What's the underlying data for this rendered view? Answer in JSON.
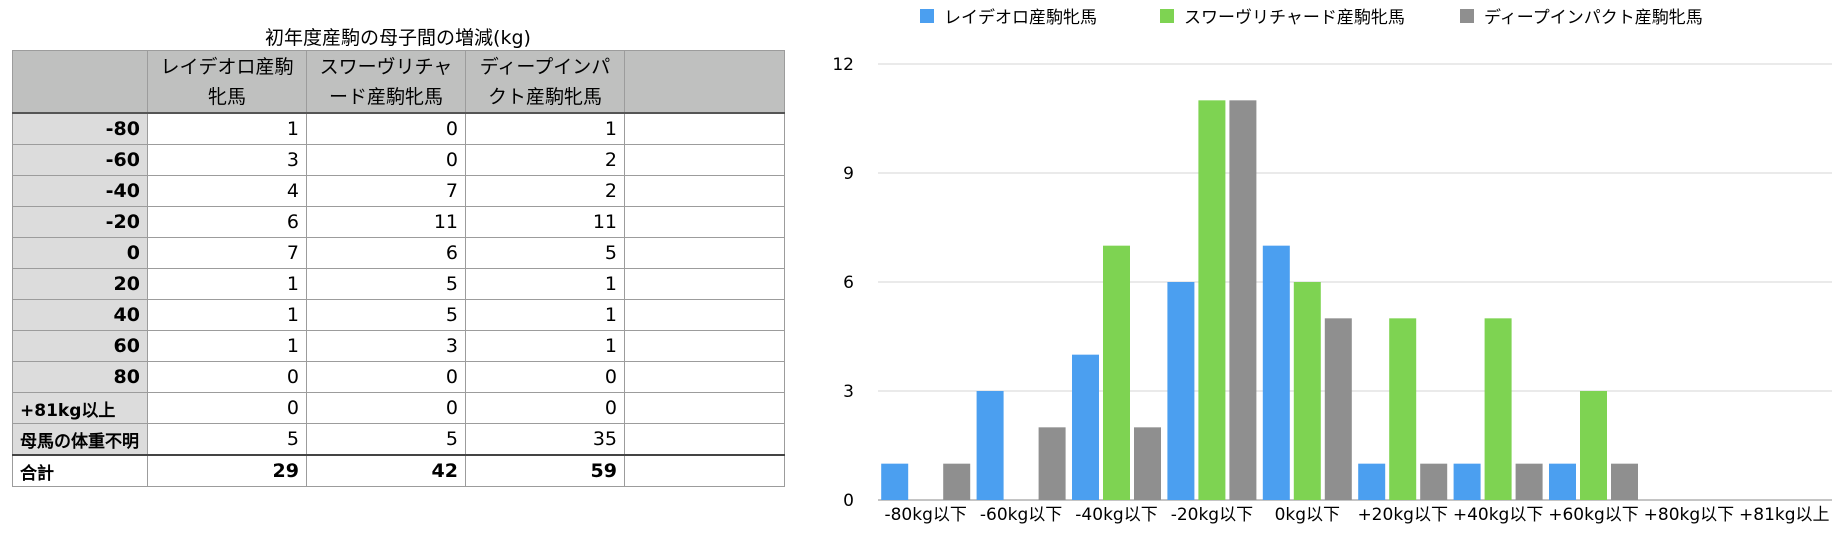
{
  "table": {
    "title": "初年度産駒の母子間の増減(kg)",
    "header": [
      "",
      "レイデオロ産駒牝馬",
      "スワーヴリチャード産駒牝馬",
      "ディープインパクト産駒牝馬",
      ""
    ],
    "rows": [
      {
        "label": "-80",
        "values": [
          "1",
          "0",
          "1"
        ]
      },
      {
        "label": "-60",
        "values": [
          "3",
          "0",
          "2"
        ]
      },
      {
        "label": "-40",
        "values": [
          "4",
          "7",
          "2"
        ]
      },
      {
        "label": "-20",
        "values": [
          "6",
          "11",
          "11"
        ]
      },
      {
        "label": "0",
        "values": [
          "7",
          "6",
          "5"
        ]
      },
      {
        "label": "20",
        "values": [
          "1",
          "5",
          "1"
        ]
      },
      {
        "label": "40",
        "values": [
          "1",
          "5",
          "1"
        ]
      },
      {
        "label": "60",
        "values": [
          "1",
          "3",
          "1"
        ]
      },
      {
        "label": "80",
        "values": [
          "0",
          "0",
          "0"
        ]
      },
      {
        "label": "+81kg以上",
        "values": [
          "0",
          "0",
          "0"
        ]
      },
      {
        "label": "母馬の体重不明",
        "values": [
          "5",
          "5",
          "35"
        ]
      }
    ],
    "total": {
      "label": "合計",
      "values": [
        "29",
        "42",
        "59"
      ]
    }
  },
  "chart_data": {
    "type": "bar",
    "title": "",
    "xlabel": "",
    "ylabel": "",
    "categories": [
      "-80kg以下",
      "-60kg以下",
      "-40kg以下",
      "-20kg以下",
      "0kg以下",
      "+20kg以下",
      "+40kg以下",
      "+60kg以下",
      "+80kg以下",
      "+81kg以上"
    ],
    "series": [
      {
        "name": "レイデオロ産駒牝馬",
        "color": "#4b9ff0",
        "values": [
          1,
          3,
          4,
          6,
          7,
          1,
          1,
          1,
          0,
          0
        ]
      },
      {
        "name": "スワーヴリチャード産駒牝馬",
        "color": "#7ed352",
        "values": [
          0,
          0,
          7,
          11,
          6,
          5,
          5,
          3,
          0,
          0
        ]
      },
      {
        "name": "ディープインパクト産駒牝馬",
        "color": "#8f8f8f",
        "values": [
          1,
          2,
          2,
          11,
          5,
          1,
          1,
          1,
          0,
          0
        ]
      }
    ],
    "ylim": [
      0,
      12
    ],
    "yticks": [
      0,
      3,
      6,
      9,
      12
    ],
    "grid": true,
    "legend": "top"
  }
}
